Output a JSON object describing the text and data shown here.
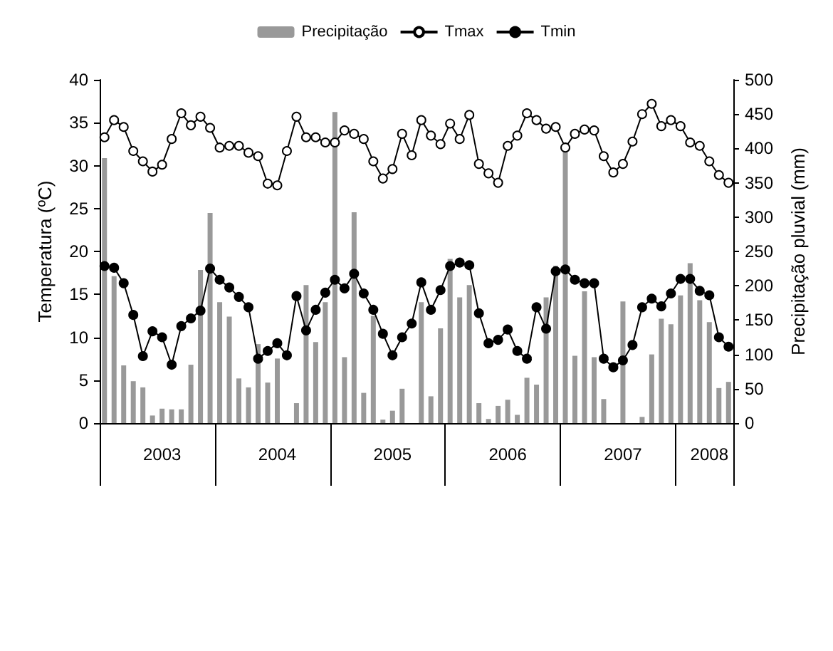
{
  "chart_data": {
    "type": "line",
    "ylabel": "Temperatura (ºC)",
    "y2label": "Precipitação pluvial (mm)",
    "categories": [
      null,
      null,
      null,
      null,
      null,
      null,
      "2003",
      null,
      null,
      null,
      null,
      null,
      null,
      null,
      null,
      null,
      null,
      null,
      "2004",
      null,
      null,
      null,
      null,
      null,
      null,
      null,
      null,
      null,
      null,
      null,
      "2005",
      null,
      null,
      null,
      null,
      null,
      null,
      null,
      null,
      null,
      null,
      null,
      "2006",
      null,
      null,
      null,
      null,
      null,
      null,
      null,
      null,
      null,
      null,
      null,
      "2007",
      null,
      null,
      null,
      null,
      null,
      null,
      null,
      null,
      "2008",
      null,
      null
    ],
    "ylim": [
      0,
      40
    ],
    "yticks": [
      0,
      5,
      10,
      15,
      20,
      25,
      30,
      35,
      40
    ],
    "y2lim": [
      0,
      500
    ],
    "y2ticks": [
      0,
      50,
      100,
      150,
      200,
      250,
      300,
      350,
      400,
      450,
      500
    ],
    "grid": false,
    "legend": "top",
    "marker": "circle",
    "line_style": "solid",
    "series": [
      {
        "name": "Precipitação",
        "type": "bar",
        "axis": "y2",
        "color": "#999999",
        "values": [
          386,
          214,
          84,
          61,
          52,
          11,
          21,
          20,
          20,
          85,
          223,
          306,
          176,
          155,
          65,
          52,
          115,
          59,
          94,
          0,
          29,
          201,
          118,
          176,
          453,
          96,
          307,
          44,
          156,
          5,
          18,
          50,
          0,
          176,
          39,
          138,
          239,
          183,
          201,
          29,
          6,
          25,
          34,
          12,
          66,
          56,
          183,
          229,
          400,
          98,
          192,
          96,
          35,
          0,
          177,
          0,
          9,
          100,
          152,
          144,
          186,
          233,
          179,
          147,
          51,
          60
        ]
      },
      {
        "name": "Tmax",
        "color": "#ffffff",
        "values": [
          33.3,
          35.3,
          34.5,
          31.7,
          30.5,
          29.3,
          30.1,
          33.1,
          36.1,
          34.7,
          35.7,
          34.4,
          32.1,
          32.3,
          32.3,
          31.5,
          31.1,
          27.9,
          27.7,
          31.7,
          35.7,
          33.3,
          33.3,
          32.7,
          32.7,
          34.1,
          33.7,
          33.1,
          30.5,
          28.5,
          29.6,
          33.7,
          31.2,
          35.3,
          33.5,
          32.5,
          34.9,
          33.1,
          35.9,
          30.2,
          29.1,
          28.0,
          32.3,
          33.5,
          36.1,
          35.3,
          34.3,
          34.5,
          32.1,
          33.7,
          34.2,
          34.1,
          31.1,
          29.2,
          30.2,
          32.8,
          36.0,
          37.2,
          34.6,
          35.3,
          34.6,
          32.7,
          32.3,
          30.5,
          28.9,
          28.0
        ]
      },
      {
        "name": "Tmin",
        "color": "#000000",
        "values": [
          18.3,
          18.1,
          16.3,
          12.6,
          7.8,
          10.7,
          10.0,
          6.8,
          11.3,
          12.2,
          13.1,
          18.0,
          16.7,
          15.8,
          14.7,
          13.5,
          7.5,
          8.4,
          9.3,
          7.9,
          14.8,
          10.8,
          13.2,
          15.2,
          16.7,
          15.7,
          17.4,
          15.1,
          13.2,
          10.4,
          7.9,
          10.0,
          11.6,
          16.4,
          13.2,
          15.5,
          18.3,
          18.7,
          18.4,
          12.8,
          9.3,
          9.7,
          10.9,
          8.4,
          7.5,
          13.5,
          11.0,
          17.7,
          17.9,
          16.7,
          16.3,
          16.3,
          7.5,
          6.5,
          7.3,
          9.1,
          13.5,
          14.5,
          13.6,
          15.1,
          16.8,
          16.8,
          15.4,
          14.9,
          10.0,
          8.9
        ]
      }
    ]
  }
}
